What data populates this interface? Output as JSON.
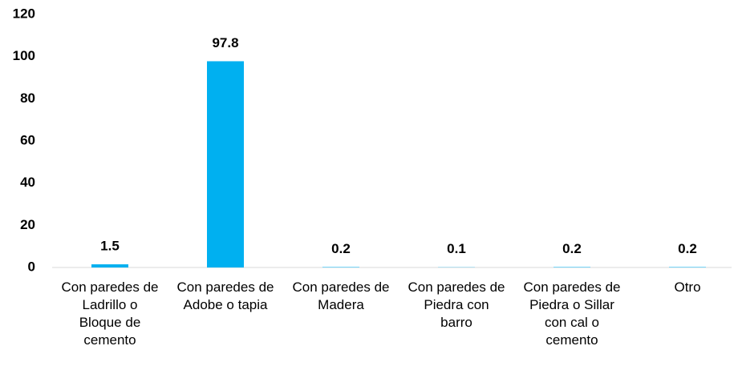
{
  "chart_data": {
    "type": "bar",
    "categories": [
      "Con paredes de Ladrillo o Bloque de cemento",
      "Con paredes de Adobe o tapia",
      "Con paredes de Madera",
      "Con paredes de Piedra con barro",
      "Con paredes de Piedra o Sillar con cal o cemento",
      "Otro"
    ],
    "values": [
      1.5,
      97.8,
      0.2,
      0.1,
      0.2,
      0.2
    ],
    "color": "#00b0f0",
    "ylim": [
      0,
      120
    ],
    "yticks": [
      0,
      20,
      40,
      60,
      80,
      100,
      120
    ],
    "grid": false
  }
}
